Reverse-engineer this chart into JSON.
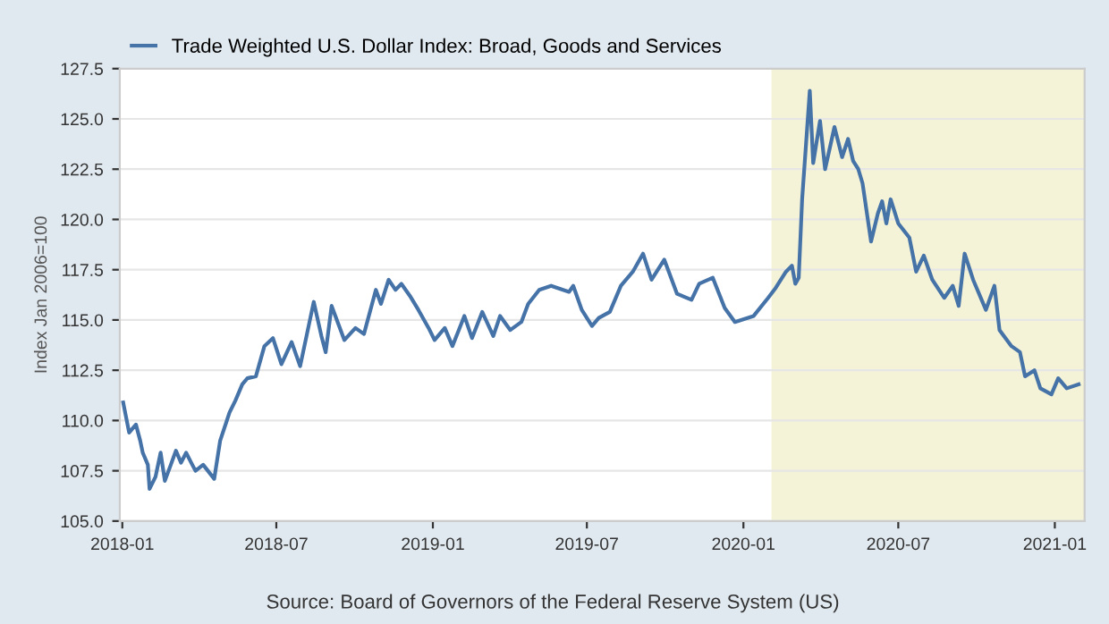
{
  "chart_data": {
    "type": "line",
    "ylabel": "Index Jan 2006=100",
    "annotations": [
      "Source: Board of Governors of the Federal Reserve System (US)"
    ],
    "xlim": [
      "2017-12-29",
      "2021-02-05"
    ],
    "xticks": [
      {
        "value": "2018-01-01",
        "label": "2018-01"
      },
      {
        "value": "2018-07-01",
        "label": "2018-07"
      },
      {
        "value": "2019-01-01",
        "label": "2019-01"
      },
      {
        "value": "2019-07-01",
        "label": "2019-07"
      },
      {
        "value": "2020-01-01",
        "label": "2020-01"
      },
      {
        "value": "2020-07-01",
        "label": "2020-07"
      },
      {
        "value": "2021-01-01",
        "label": "2021-01"
      }
    ],
    "ylim": [
      105,
      127.5
    ],
    "yticks": [
      {
        "value": 105,
        "label": "105.0"
      },
      {
        "value": 107.5,
        "label": "107.5"
      },
      {
        "value": 110,
        "label": "110.0"
      },
      {
        "value": 112.5,
        "label": "112.5"
      },
      {
        "value": 115,
        "label": "115.0"
      },
      {
        "value": 117.5,
        "label": "117.5"
      },
      {
        "value": 120,
        "label": "120.0"
      },
      {
        "value": 122.5,
        "label": "122.5"
      },
      {
        "value": 125,
        "label": "125.0"
      },
      {
        "value": 127.5,
        "label": "127.5"
      }
    ],
    "grid": "y",
    "legend": "top left",
    "line_style": "solid",
    "marker": "none",
    "bands": [
      {
        "axis": "x",
        "from": "2020-02-03",
        "to": "2021-02-05",
        "color": "#f4f3d8"
      }
    ],
    "series": [
      {
        "name": "Trade Weighted U.S. Dollar Index: Broad, Goods and Services",
        "color": "#4572a7",
        "x": [
          "2018-01-02",
          "2018-01-09",
          "2018-01-17",
          "2018-01-22",
          "2018-01-25",
          "2018-01-31",
          "2018-02-02",
          "2018-02-09",
          "2018-02-15",
          "2018-02-20",
          "2018-02-27",
          "2018-03-05",
          "2018-03-11",
          "2018-03-17",
          "2018-03-23",
          "2018-03-28",
          "2018-04-06",
          "2018-04-19",
          "2018-04-26",
          "2018-05-07",
          "2018-05-14",
          "2018-05-22",
          "2018-05-28",
          "2018-06-07",
          "2018-06-17",
          "2018-06-27",
          "2018-07-07",
          "2018-07-19",
          "2018-07-29",
          "2018-08-14",
          "2018-08-23",
          "2018-08-28",
          "2018-09-04",
          "2018-09-19",
          "2018-10-02",
          "2018-10-12",
          "2018-10-26",
          "2018-11-01",
          "2018-11-10",
          "2018-11-18",
          "2018-11-25",
          "2018-12-05",
          "2018-12-15",
          "2018-12-27",
          "2019-01-03",
          "2019-01-15",
          "2019-01-24",
          "2019-02-07",
          "2019-02-16",
          "2019-02-28",
          "2019-03-13",
          "2019-03-21",
          "2019-04-02",
          "2019-04-15",
          "2019-04-23",
          "2019-05-06",
          "2019-05-20",
          "2019-06-10",
          "2019-06-15",
          "2019-06-25",
          "2019-07-07",
          "2019-07-15",
          "2019-07-28",
          "2019-08-10",
          "2019-08-24",
          "2019-09-05",
          "2019-09-15",
          "2019-09-30",
          "2019-10-15",
          "2019-11-01",
          "2019-11-10",
          "2019-11-26",
          "2019-12-10",
          "2019-12-22",
          "2020-01-13",
          "2020-01-30",
          "2020-02-08",
          "2020-02-20",
          "2020-02-27",
          "2020-03-02",
          "2020-03-06",
          "2020-03-10",
          "2020-03-19",
          "2020-03-23",
          "2020-03-31",
          "2020-04-06",
          "2020-04-17",
          "2020-04-26",
          "2020-05-03",
          "2020-05-09",
          "2020-05-15",
          "2020-05-20",
          "2020-05-30",
          "2020-06-07",
          "2020-06-12",
          "2020-06-17",
          "2020-06-22",
          "2020-07-01",
          "2020-07-14",
          "2020-07-22",
          "2020-07-31",
          "2020-08-10",
          "2020-08-24",
          "2020-09-03",
          "2020-09-10",
          "2020-09-17",
          "2020-09-27",
          "2020-10-12",
          "2020-10-22",
          "2020-10-28",
          "2020-11-11",
          "2020-11-21",
          "2020-11-27",
          "2020-12-08",
          "2020-12-15",
          "2020-12-28",
          "2021-01-05",
          "2021-01-15",
          "2021-01-29"
        ],
        "values": [
          110.9,
          109.4,
          109.8,
          109.0,
          108.4,
          107.8,
          106.6,
          107.2,
          108.4,
          107.0,
          107.8,
          108.5,
          107.9,
          108.4,
          107.9,
          107.5,
          107.8,
          107.1,
          109.0,
          110.4,
          111.0,
          111.8,
          112.1,
          112.2,
          113.7,
          114.1,
          112.8,
          113.9,
          112.7,
          115.9,
          114.2,
          113.4,
          115.7,
          114.0,
          114.6,
          114.3,
          116.5,
          115.8,
          117.0,
          116.5,
          116.8,
          116.2,
          115.5,
          114.6,
          114.0,
          114.6,
          113.7,
          115.2,
          114.1,
          115.4,
          114.2,
          115.2,
          114.5,
          114.9,
          115.8,
          116.5,
          116.7,
          116.4,
          116.7,
          115.5,
          114.7,
          115.1,
          115.4,
          116.7,
          117.4,
          118.3,
          117.0,
          118.0,
          116.3,
          116.0,
          116.8,
          117.1,
          115.6,
          114.9,
          115.2,
          116.1,
          116.6,
          117.4,
          117.7,
          116.8,
          117.1,
          121.0,
          126.4,
          122.8,
          124.9,
          122.5,
          124.6,
          123.1,
          124.0,
          122.9,
          122.5,
          121.8,
          118.9,
          120.3,
          120.9,
          119.8,
          121.0,
          119.8,
          119.1,
          117.4,
          118.2,
          117.0,
          116.1,
          116.7,
          115.7,
          118.3,
          117.0,
          115.5,
          116.7,
          114.5,
          113.7,
          113.4,
          112.2,
          112.5,
          111.6,
          111.3,
          112.1,
          111.6,
          111.8
        ]
      }
    ]
  }
}
